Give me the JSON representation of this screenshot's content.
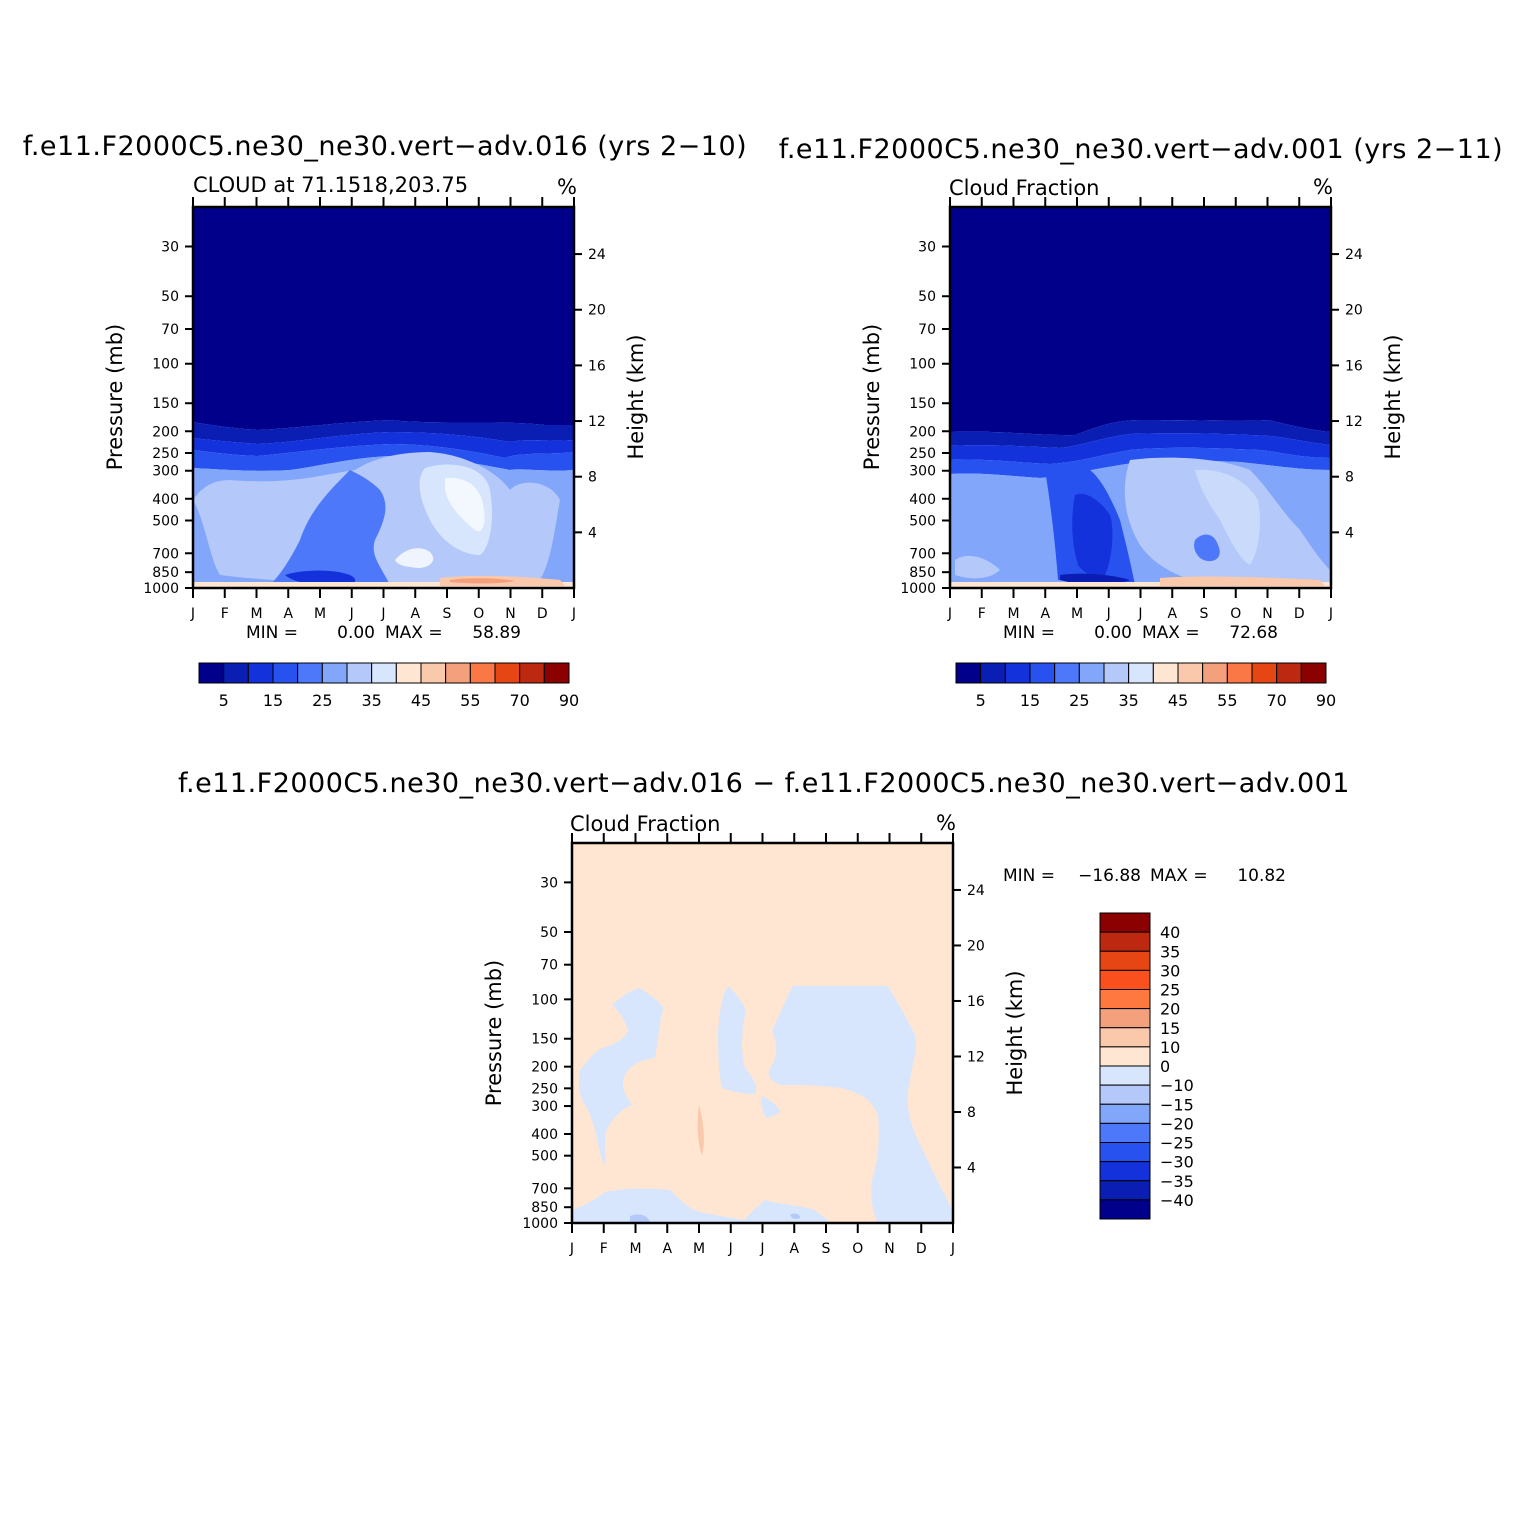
{
  "palette": [
    "#00008b",
    "#0a1eb4",
    "#1432dc",
    "#2852f0",
    "#4e78fa",
    "#82a7fa",
    "#b4c8fa",
    "#d7e6fc",
    "#ffe6d2",
    "#fac8aa",
    "#f5a07d",
    "#fa7846",
    "#e64614",
    "#bd2810",
    "#8b0000"
  ],
  "chart_data": [
    {
      "type": "contour",
      "title": "f.e11.F2000C5.ne30_ne30.vert−adv.016 (yrs 2−10)",
      "subtitle": "CLOUD at 71.1518,203.75",
      "units": "%",
      "ylabel": "Pressure (mb)",
      "y2label": "Height (km)",
      "y_ticks": [
        "30",
        "50",
        "70",
        "100",
        "150",
        "200",
        "250",
        "300",
        "400",
        "500",
        "700",
        "850",
        "1000"
      ],
      "y2_ticks": [
        "24",
        "20",
        "16",
        "12",
        "8",
        "4"
      ],
      "x_ticks": [
        "J",
        "F",
        "M",
        "A",
        "M",
        "J",
        "J",
        "A",
        "S",
        "O",
        "N",
        "D",
        "J"
      ],
      "min_label": "MIN =",
      "min": "0.00",
      "max_label": "MAX =",
      "max": "58.89",
      "colorbar_labels": [
        "5",
        "15",
        "25",
        "35",
        "45",
        "55",
        "70",
        "90"
      ]
    },
    {
      "type": "contour",
      "title": "f.e11.F2000C5.ne30_ne30.vert−adv.001 (yrs 2−11)",
      "subtitle": "Cloud Fraction",
      "units": "%",
      "ylabel": "Pressure (mb)",
      "y2label": "Height (km)",
      "y_ticks": [
        "30",
        "50",
        "70",
        "100",
        "150",
        "200",
        "250",
        "300",
        "400",
        "500",
        "700",
        "850",
        "1000"
      ],
      "y2_ticks": [
        "24",
        "20",
        "16",
        "12",
        "8",
        "4"
      ],
      "x_ticks": [
        "J",
        "F",
        "M",
        "A",
        "M",
        "J",
        "J",
        "A",
        "S",
        "O",
        "N",
        "D",
        "J"
      ],
      "min_label": "MIN =",
      "min": "0.00",
      "max_label": "MAX =",
      "max": "72.68",
      "colorbar_labels": [
        "5",
        "15",
        "25",
        "35",
        "45",
        "55",
        "70",
        "90"
      ]
    },
    {
      "type": "contour",
      "title": "f.e11.F2000C5.ne30_ne30.vert−adv.016 − f.e11.F2000C5.ne30_ne30.vert−adv.001",
      "subtitle": "Cloud Fraction",
      "units": "%",
      "ylabel": "Pressure (mb)",
      "y2label": "Height (km)",
      "y_ticks": [
        "30",
        "50",
        "70",
        "100",
        "150",
        "200",
        "250",
        "300",
        "400",
        "500",
        "700",
        "850",
        "1000"
      ],
      "y2_ticks": [
        "24",
        "20",
        "16",
        "12",
        "8",
        "4"
      ],
      "x_ticks": [
        "J",
        "F",
        "M",
        "A",
        "M",
        "J",
        "J",
        "A",
        "S",
        "O",
        "N",
        "D",
        "J"
      ],
      "min_label": "MIN =",
      "min": "−16.88",
      "max_label": "MAX =",
      "max": "10.82",
      "colorbar_labels": [
        "40",
        "35",
        "30",
        "25",
        "20",
        "15",
        "10",
        "0",
        "−10",
        "−15",
        "−20",
        "−25",
        "−30",
        "−35",
        "−40"
      ],
      "colorbar_colors": [
        "#8b0000",
        "#bd2810",
        "#e64614",
        "#fa501e",
        "#ff7840",
        "#f5a07d",
        "#fac8aa",
        "#ffe6d2",
        "#d7e6fc",
        "#b4c8fa",
        "#82a7fa",
        "#4e78fa",
        "#2852f0",
        "#1432dc",
        "#0a1eb4",
        "#00008b"
      ]
    }
  ]
}
